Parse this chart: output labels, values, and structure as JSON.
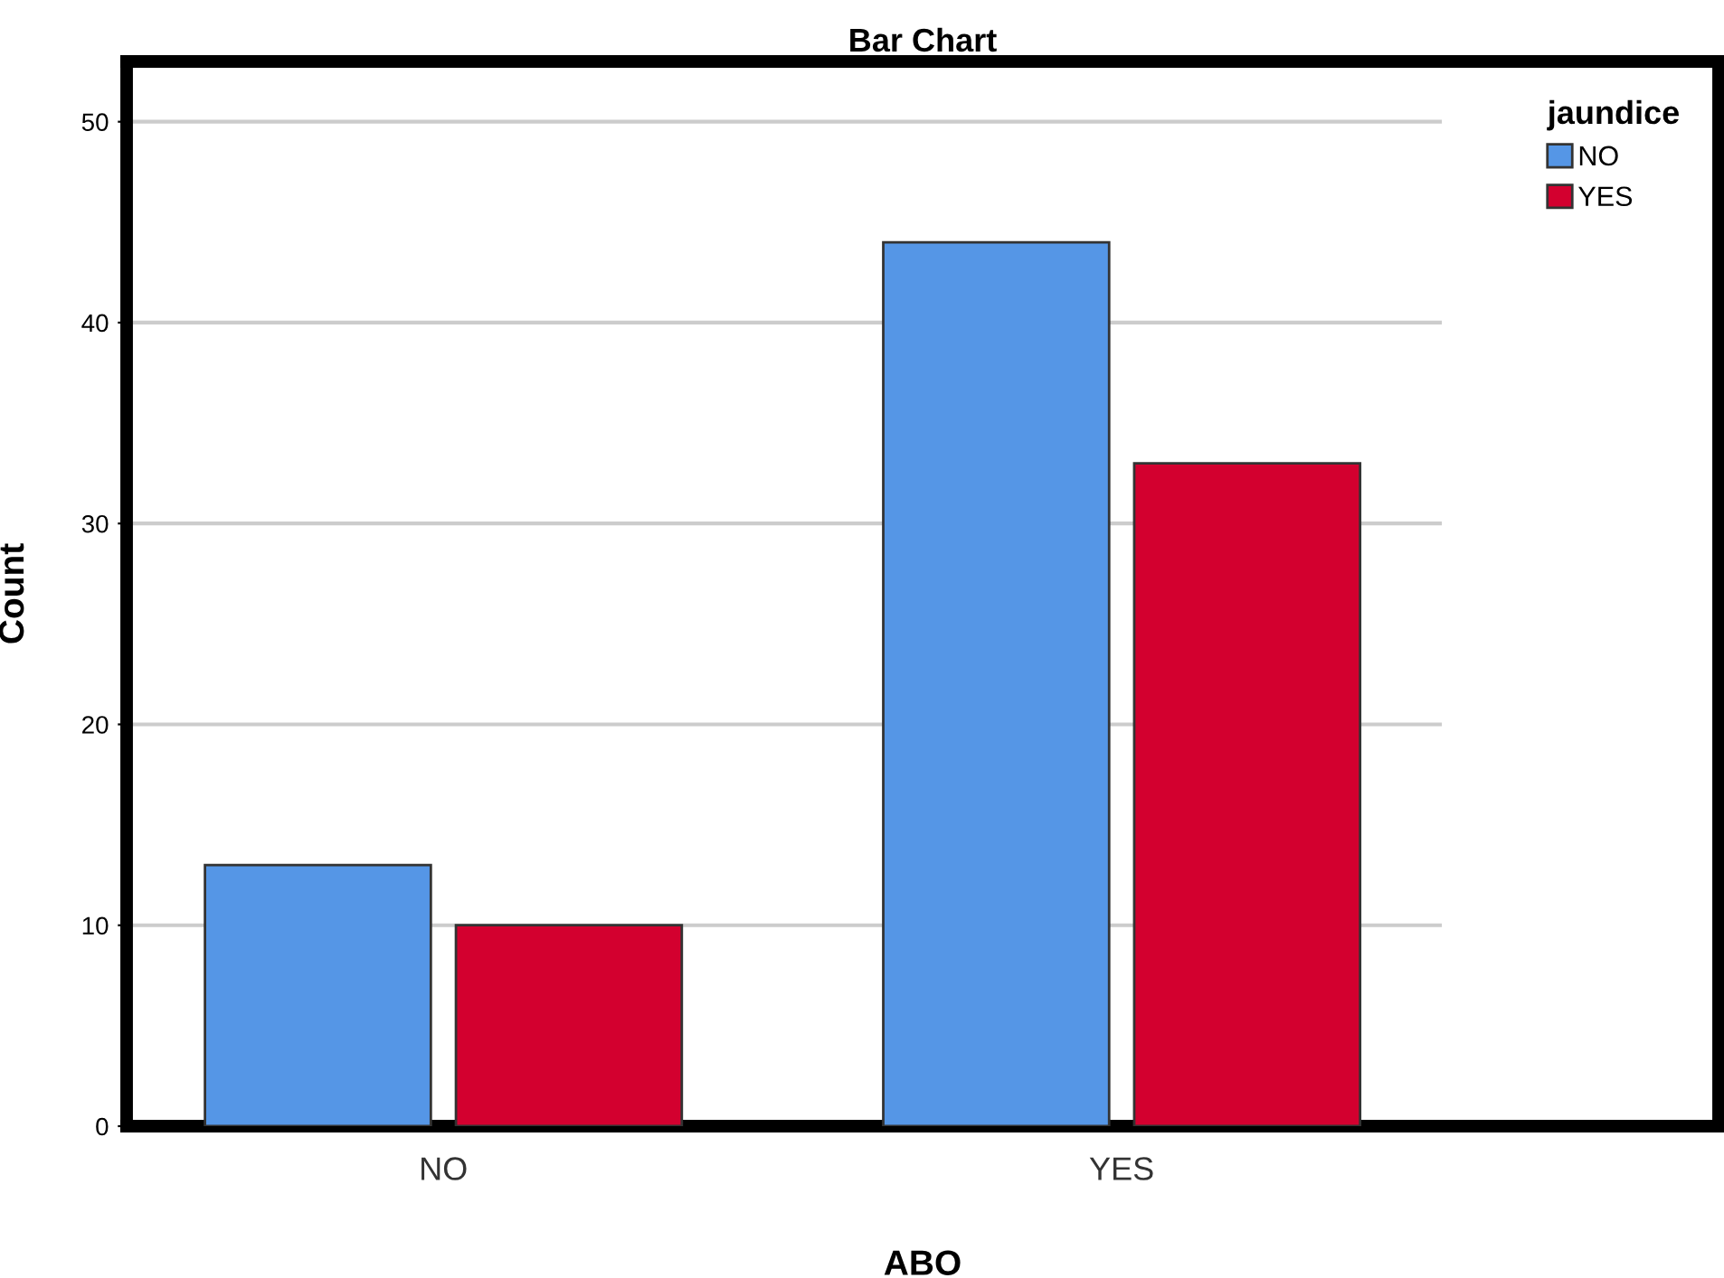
{
  "chart_data": {
    "type": "bar",
    "title": "Bar Chart",
    "xlabel": "ABO",
    "ylabel": "Count",
    "legend_title": "jaundice",
    "categories": [
      "NO",
      "YES"
    ],
    "series": [
      {
        "name": "NO",
        "color": "#5596e6",
        "values": [
          13,
          44
        ]
      },
      {
        "name": "YES",
        "color": "#d3002f",
        "values": [
          10,
          33
        ]
      }
    ],
    "ylim": [
      0,
      53
    ],
    "yticks": [
      0,
      10,
      20,
      30,
      40,
      50
    ],
    "grid": "y",
    "legend": "top right"
  }
}
